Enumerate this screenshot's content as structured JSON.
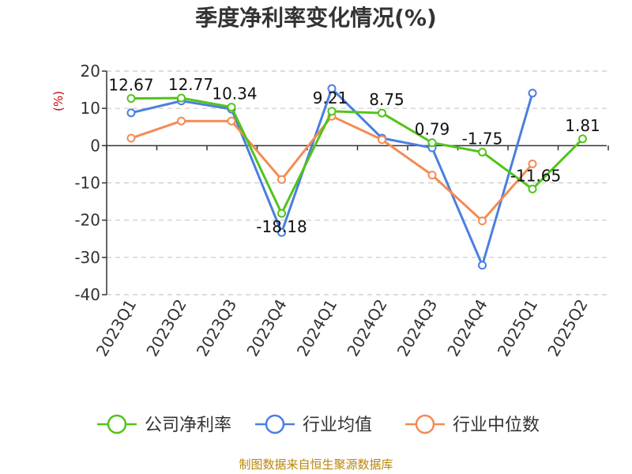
{
  "chart_data": {
    "type": "line",
    "title": "季度净利率变化情况(%)",
    "ylabel": "(%)",
    "xlabel": "",
    "categories": [
      "2023Q1",
      "2023Q2",
      "2023Q3",
      "2023Q4",
      "2024Q1",
      "2024Q2",
      "2024Q3",
      "2024Q4",
      "2025Q1",
      "2025Q2"
    ],
    "ylim": [
      -40,
      20
    ],
    "yticks": [
      20,
      10,
      0,
      -10,
      -20,
      -30,
      -40
    ],
    "grid": true,
    "legend_position": "bottom",
    "series": [
      {
        "name": "公司净利率",
        "color": "#52c41a",
        "values": [
          12.67,
          12.77,
          10.34,
          -18.18,
          9.21,
          8.75,
          0.79,
          -1.75,
          -11.65,
          1.81
        ],
        "labels": [
          "12.67",
          "12.77",
          "10.34",
          "-18.18",
          "9.21",
          "8.75",
          "0.79",
          "-1.75",
          "-11.65",
          "1.81"
        ]
      },
      {
        "name": "行业均值",
        "color": "#4a7fe0",
        "values": [
          8.8,
          12.0,
          9.8,
          -23.3,
          15.3,
          2.0,
          -0.6,
          -32.1,
          14.1,
          null
        ]
      },
      {
        "name": "行业中位数",
        "color": "#f28c55",
        "values": [
          2.0,
          6.6,
          6.6,
          -9.1,
          7.9,
          1.6,
          -7.9,
          -20.2,
          -4.9,
          null
        ]
      }
    ]
  },
  "source_text": "制图数据来自恒生聚源数据库"
}
